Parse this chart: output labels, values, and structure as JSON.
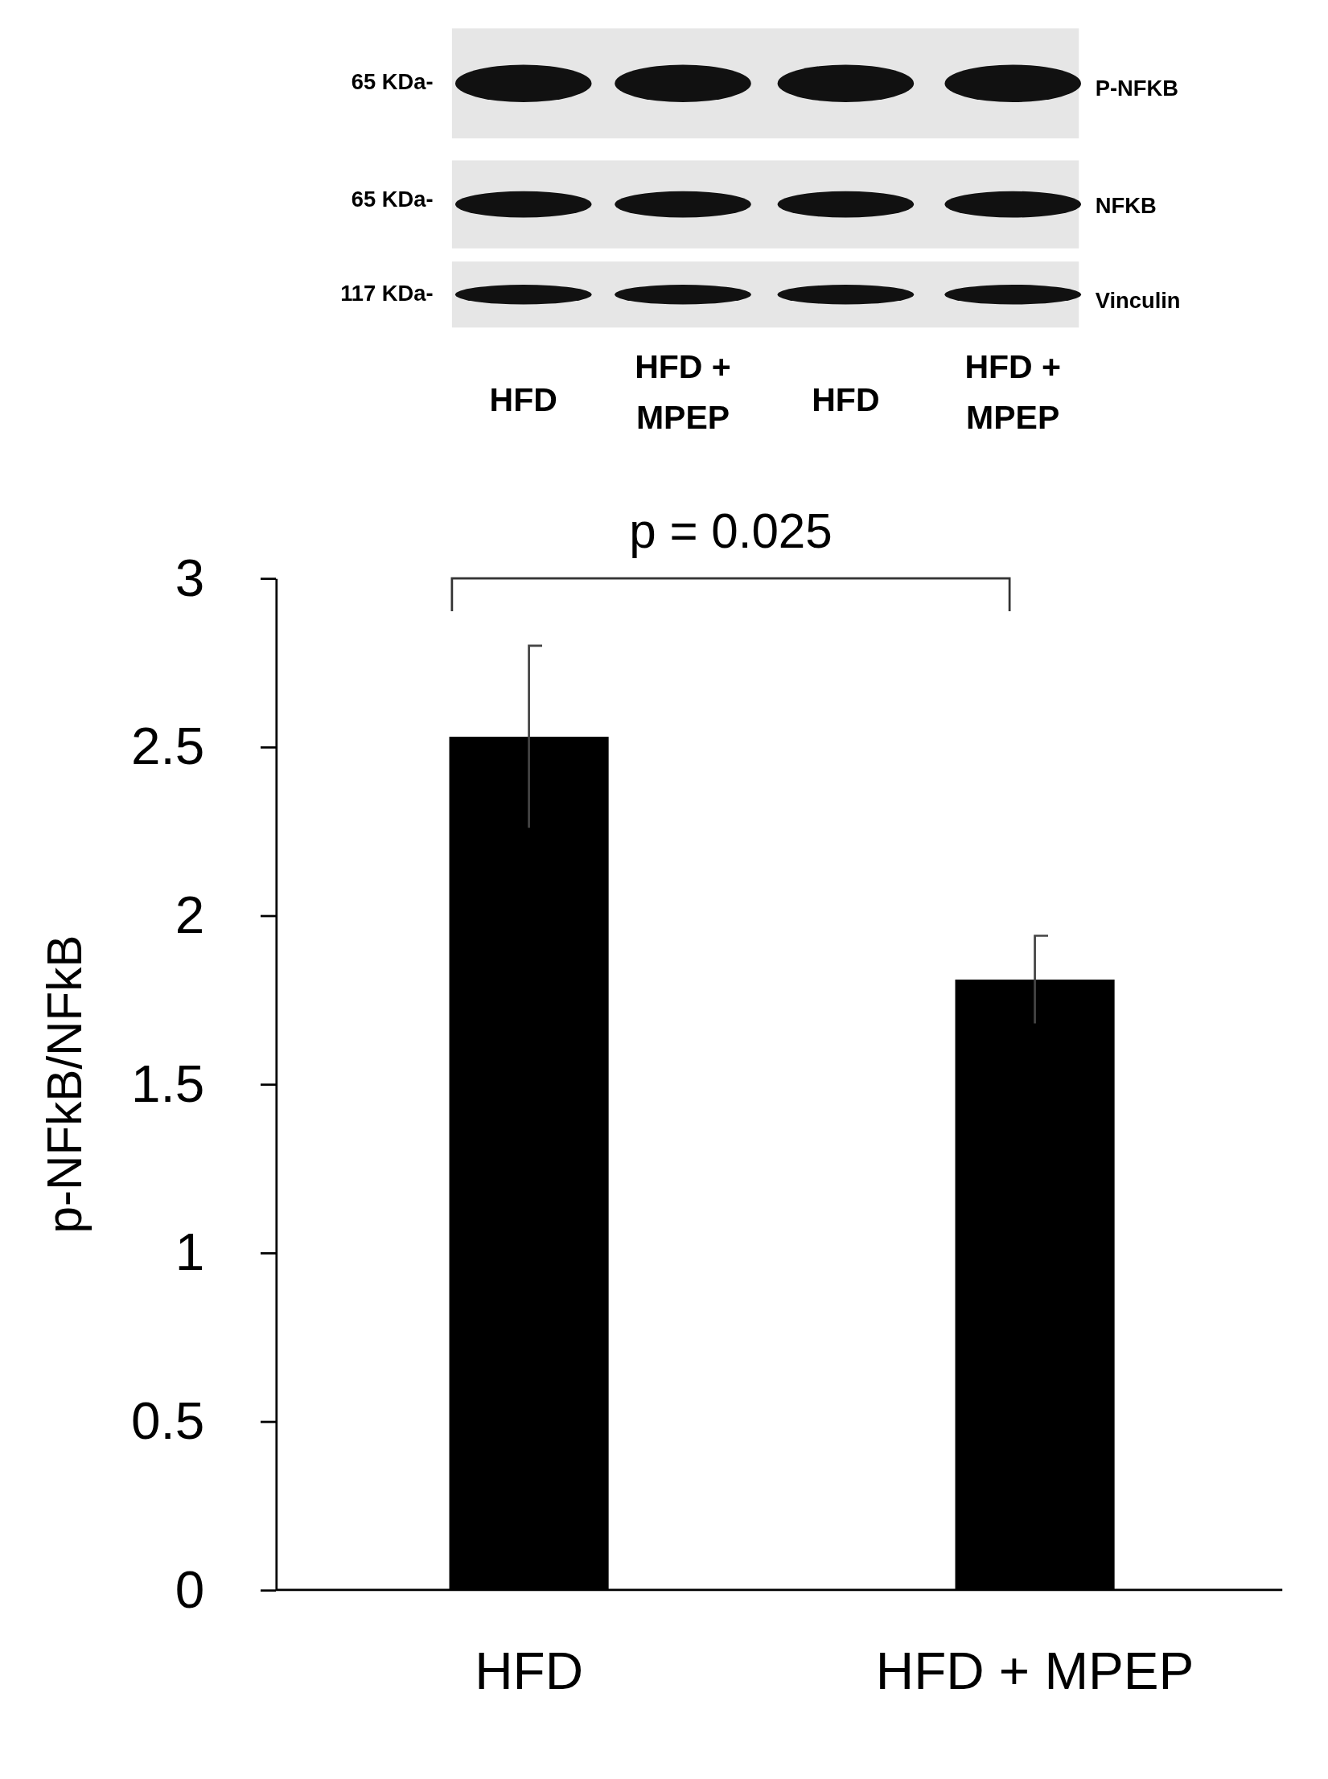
{
  "chart_data": {
    "type": "bar",
    "ylabel": "p-NFkB/NFkB",
    "categories": [
      "HFD",
      "HFD + MPEP"
    ],
    "series": [
      {
        "color": "#000000",
        "values": [
          2.53,
          1.81
        ],
        "errors": [
          0.27,
          0.13
        ]
      }
    ],
    "ylim": [
      0,
      3
    ],
    "yticks": [
      0,
      0.5,
      1,
      1.5,
      2,
      2.5,
      3
    ],
    "grid": false,
    "annotations": [
      "p = 0.025",
      "65 KDa-",
      "65 KDa-",
      "117 KDa-",
      "P-NFKB",
      "NFKB",
      "Vinculin",
      "HFD",
      "HFD + MPEP",
      "HFD",
      "HFD + MPEP"
    ]
  }
}
